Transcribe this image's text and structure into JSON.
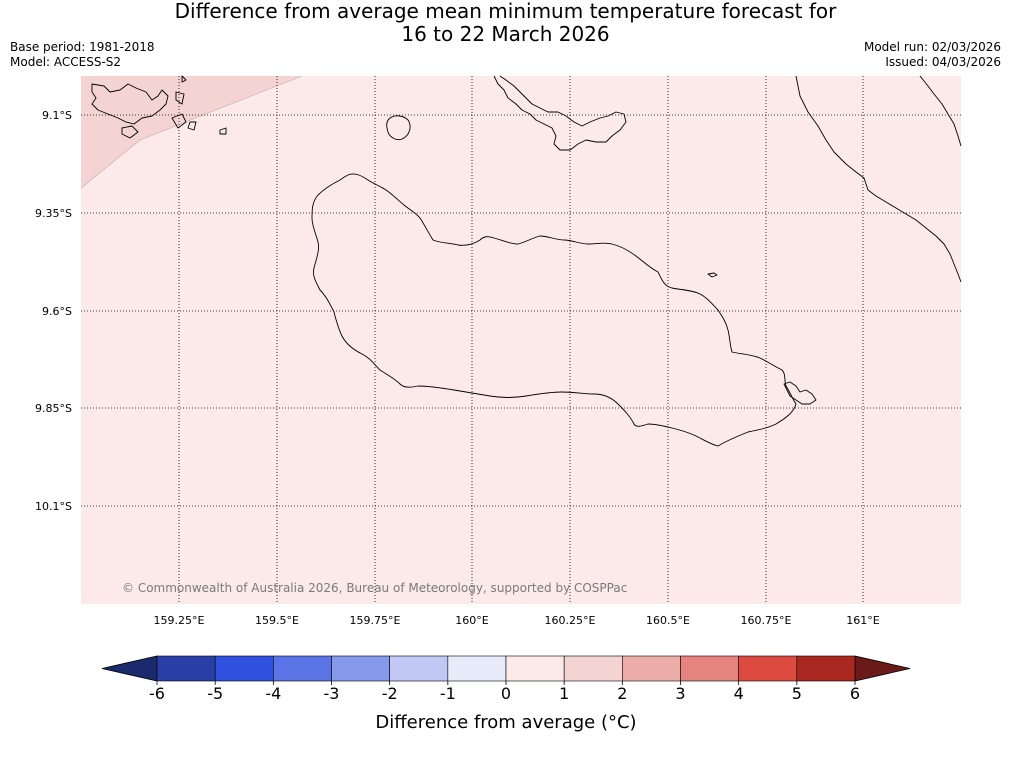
{
  "title_line1": "Difference from average mean minimum temperature forecast for",
  "title_line2": "16 to 22 March 2026",
  "base_period": "Base period: 1981-2018",
  "model": "Model: ACCESS-S2",
  "model_run": "Model run: 02/03/2026",
  "issued": "Issued: 04/03/2026",
  "copyright": "© Commonwealth of Australia 2026, Bureau of Meteorology, supported by COSPPac",
  "lon_ticks": [
    "159.25°E",
    "159.5°E",
    "159.75°E",
    "160°E",
    "160.25°E",
    "160.5°E",
    "160.75°E",
    "161°E"
  ],
  "lat_ticks": [
    "9.1°S",
    "9.35°S",
    "9.6°S",
    "9.85°S",
    "10.1°S"
  ],
  "colorbar": {
    "title": "Difference from average (°C)",
    "labels": [
      "-6",
      "-5",
      "-4",
      "-3",
      "-2",
      "-1",
      "0",
      "1",
      "2",
      "3",
      "4",
      "5",
      "6"
    ],
    "low_extend_color": "#1a2a6c",
    "high_extend_color": "#6b1a1a",
    "colors": [
      "#2a3fa6",
      "#2f52e0",
      "#5a74e6",
      "#8799ea",
      "#c1c8f3",
      "#e8ebfa",
      "#fbeae9",
      "#f4d4d2",
      "#edaeaa",
      "#e5847e",
      "#dd4a3f",
      "#a8271f"
    ]
  },
  "map": {
    "background_fill": "#fbeae9",
    "corner_fill": "#f4d4d2",
    "coastline_color": "#000000",
    "grid_style": "dotted"
  }
}
